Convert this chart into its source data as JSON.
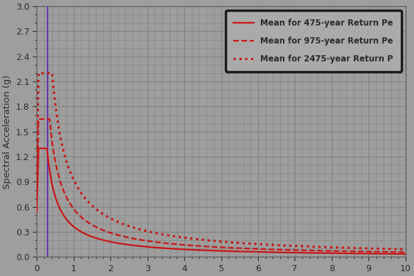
{
  "ylabel": "Spectral Acceleration (g)",
  "xlabel": "",
  "xlim": [
    0,
    10
  ],
  "ylim": [
    0,
    3
  ],
  "xticks": [
    0,
    1,
    2,
    3,
    4,
    5,
    6,
    7,
    8,
    9,
    10
  ],
  "yticks": [
    0,
    0.3,
    0.6,
    0.9,
    1.2,
    1.5,
    1.8,
    2.1,
    2.4,
    2.7,
    3.0
  ],
  "background_color": "#9e9e9e",
  "grid_color": "#808080",
  "vline_x": 0.3,
  "vline_color": "#6633aa",
  "curve_color": "#cc1111",
  "legend_labels": [
    "Mean for 475-year Return Pe",
    "Mean for 975-year Return Pe",
    "Mean for 2475-year Return P"
  ],
  "legend_bg": "#aaaaaa",
  "legend_edge_color": "#1a1a1a",
  "text_color": "#2a2a2a",
  "curves": {
    "475": {
      "peak": 1.3,
      "T_peak": 0.28,
      "decay_exp": 1.0
    },
    "975": {
      "peak": 1.65,
      "T_peak": 0.35,
      "decay_exp": 1.0
    },
    "2475": {
      "peak": 2.2,
      "T_peak": 0.42,
      "decay_exp": 1.0
    }
  }
}
